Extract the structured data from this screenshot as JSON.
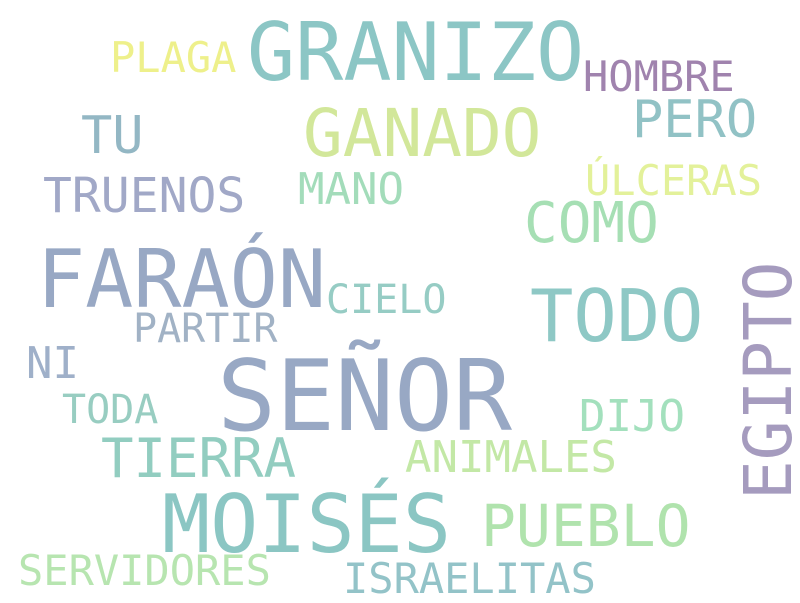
{
  "words": [
    {
      "text": "SEÑOR",
      "color": "#98a8c4"
    },
    {
      "text": "GRANIZO",
      "color": "#8cc6c5"
    },
    {
      "text": "FARAÓN",
      "color": "#98a8c4"
    },
    {
      "text": "MOISÉS",
      "color": "#8bc6c3"
    },
    {
      "text": "GANADO",
      "color": "#d2e79a"
    },
    {
      "text": "TODO",
      "color": "#8ec8c5"
    },
    {
      "text": "EGIPTO",
      "color": "#a59bbe"
    },
    {
      "text": "COMO",
      "color": "#a6dfb4"
    },
    {
      "text": "PUEBLO",
      "color": "#b0e3ad"
    },
    {
      "text": "TIERRA",
      "color": "#92cdc0"
    },
    {
      "text": "PERO",
      "color": "#91c2c5"
    },
    {
      "text": "TU",
      "color": "#93b7c4"
    },
    {
      "text": "TRUENOS",
      "color": "#a1a8c7"
    },
    {
      "text": "MANO",
      "color": "#a3dcba"
    },
    {
      "text": "HOMBRE",
      "color": "#a083ae"
    },
    {
      "text": "PLAGA",
      "color": "#eef08b"
    },
    {
      "text": "ÚLCERAS",
      "color": "#e3f19a"
    },
    {
      "text": "ANIMALES",
      "color": "#c3e8a6"
    },
    {
      "text": "SERVIDORES",
      "color": "#b7e5b0"
    },
    {
      "text": "ISRAELITAS",
      "color": "#93c3c8"
    },
    {
      "text": "DIJO",
      "color": "#a3e0bd"
    },
    {
      "text": "CIELO",
      "color": "#96ccc4"
    },
    {
      "text": "PARTIR",
      "color": "#a1b2c5"
    },
    {
      "text": "TODA",
      "color": "#98cdc1"
    },
    {
      "text": "NI",
      "color": "#9fb0c9"
    }
  ]
}
